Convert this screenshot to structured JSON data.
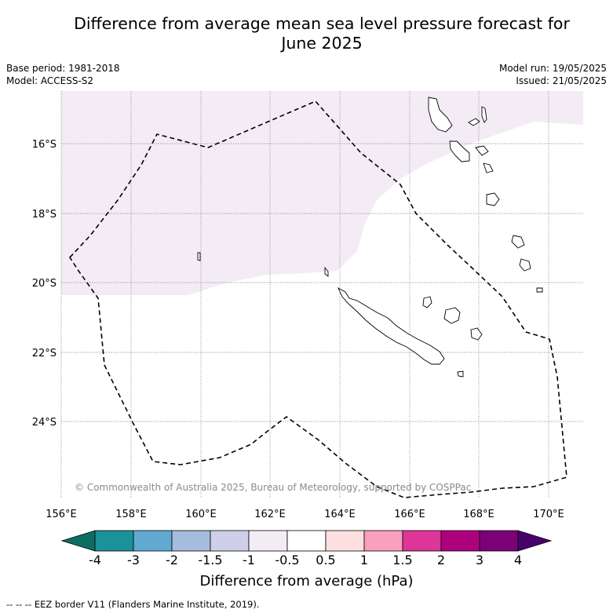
{
  "title_line1": "Difference from average mean sea level pressure forecast for",
  "title_line2": "June 2025",
  "meta_left": {
    "base_period": "Base period: 1981-2018",
    "model": "Model: ACCESS-S2"
  },
  "meta_right": {
    "model_run": "Model run: 19/05/2025",
    "issued": "Issued: 21/05/2025"
  },
  "lon_labels": [
    "156°E",
    "158°E",
    "160°E",
    "162°E",
    "164°E",
    "166°E",
    "168°E",
    "170°E"
  ],
  "lat_labels": [
    "16°S",
    "18°S",
    "20°S",
    "22°S",
    "24°S"
  ],
  "copyright": "© Commonwealth of Australia 2025, Bureau of Meteorology, supported by COSPPac",
  "colorbar": {
    "ticks": [
      "-4",
      "-3",
      "-2",
      "-1.5",
      "-1",
      "-0.5",
      "0.5",
      "1",
      "1.5",
      "2",
      "3",
      "4"
    ],
    "colors": [
      "#0c6e63",
      "#1b9199",
      "#62a9d2",
      "#a6bcdd",
      "#cfd0e7",
      "#f3ecf5",
      "#ffffff",
      "#fedfdf",
      "#f89fbc",
      "#dd3598",
      "#ae017e",
      "#7a0177",
      "#49006a"
    ],
    "title": "Difference from average (hPa)"
  },
  "footnote": "-- -- -- EEZ border V11 (Flanders Marine Institute, 2019)."
}
